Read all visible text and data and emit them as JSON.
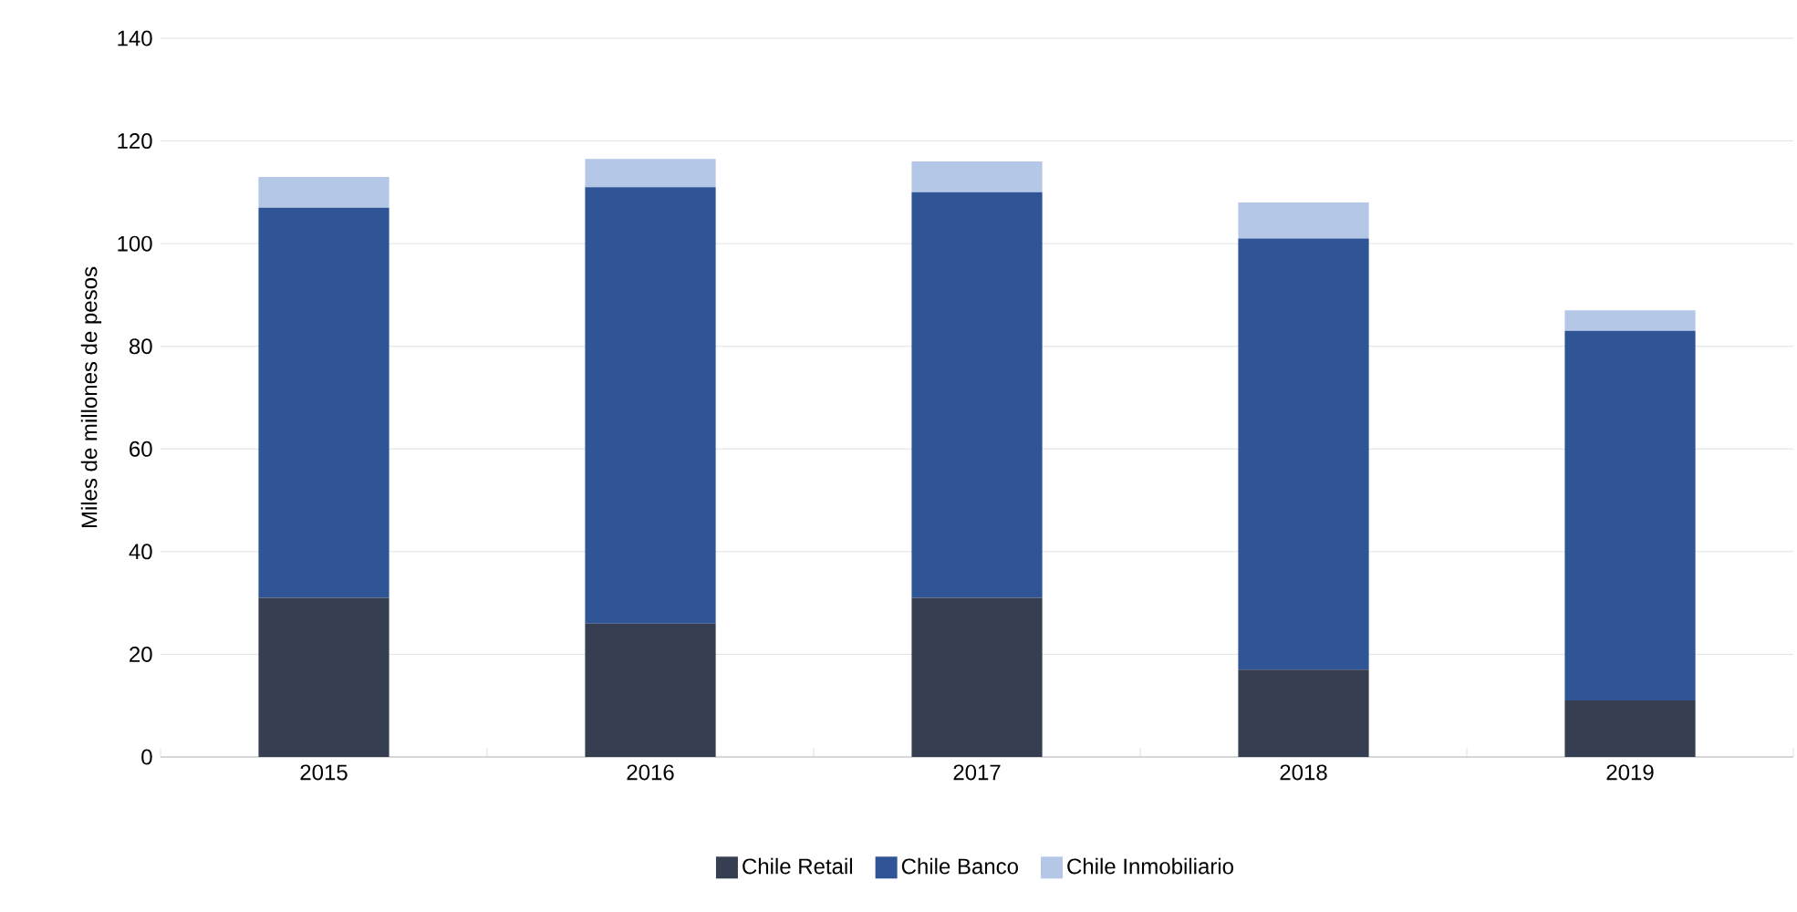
{
  "chart_data": {
    "type": "bar",
    "stacked": true,
    "ylabel": "Miles de millones de pesos",
    "categories": [
      "2015",
      "2016",
      "2017",
      "2018",
      "2019"
    ],
    "series": [
      {
        "name": "Chile Retail",
        "color": "#363f51",
        "values": [
          31,
          26,
          31,
          17,
          11
        ]
      },
      {
        "name": "Chile Banco",
        "color": "#2f5597",
        "values": [
          76,
          85,
          79,
          84,
          72
        ]
      },
      {
        "name": "Chile Inmobiliario",
        "color": "#b4c7e7",
        "values": [
          6,
          5.5,
          6,
          7,
          4
        ]
      }
    ],
    "ylim": [
      0,
      140
    ],
    "yticks": [
      0,
      20,
      40,
      60,
      80,
      100,
      120,
      140
    ],
    "grid": "y",
    "legend": "bottom"
  }
}
